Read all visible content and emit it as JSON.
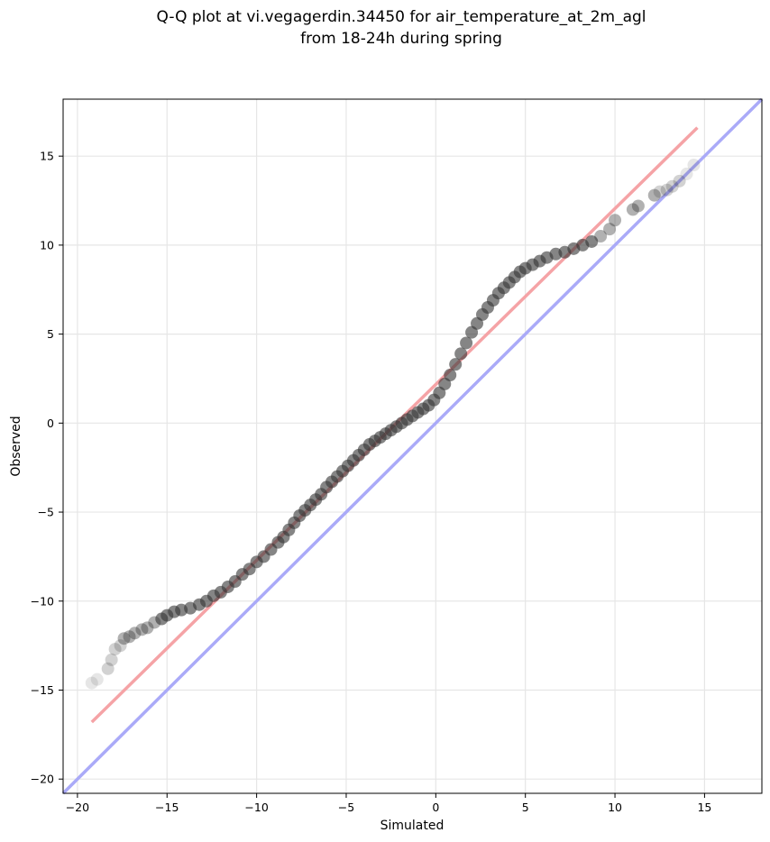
{
  "chart_data": {
    "type": "scatter",
    "title_lines": [
      "Q-Q plot at vi.vegagerdin.34450 for air_temperature_at_2m_agl",
      "from 18-24h during spring"
    ],
    "xlabel": "Simulated",
    "ylabel": "Observed",
    "xlim": [
      -20.8,
      18.2
    ],
    "ylim": [
      -20.8,
      18.2
    ],
    "xticks": [
      -20,
      -15,
      -10,
      -5,
      0,
      5,
      10,
      15
    ],
    "yticks": [
      -20,
      -15,
      -10,
      -5,
      0,
      5,
      10,
      15
    ],
    "xtick_labels": [
      "−20",
      "−15",
      "−10",
      "−5",
      "0",
      "5",
      "10",
      "15"
    ],
    "ytick_labels": [
      "−20",
      "−15",
      "−10",
      "−5",
      "0",
      "5",
      "10",
      "15"
    ],
    "grid": true,
    "colors": {
      "points": "#333333",
      "identity_line": "#aaaaf8",
      "fit_line": "#f5a3a6",
      "grid": "#e6e6e6"
    },
    "identity_line": {
      "x": [
        -20.8,
        18.2
      ],
      "y": [
        -20.8,
        18.2
      ]
    },
    "fit_line": {
      "x": [
        -19.2,
        14.6
      ],
      "y": [
        -16.8,
        16.6
      ]
    },
    "quantile_points": {
      "x": [
        -19.2,
        -18.9,
        -18.3,
        -18.1,
        -17.9,
        -17.6,
        -17.4,
        -17.1,
        -16.8,
        -16.4,
        -16.1,
        -15.7,
        -15.3,
        -15.0,
        -14.6,
        -14.2,
        -13.7,
        -13.2,
        -12.8,
        -12.4,
        -12.0,
        -11.6,
        -11.2,
        -10.8,
        -10.4,
        -10.0,
        -9.6,
        -9.2,
        -8.8,
        -8.5,
        -8.2,
        -7.9,
        -7.6,
        -7.3,
        -7.0,
        -6.7,
        -6.4,
        -6.1,
        -5.8,
        -5.5,
        -5.2,
        -4.9,
        -4.6,
        -4.3,
        -4.0,
        -3.7,
        -3.4,
        -3.1,
        -2.8,
        -2.5,
        -2.2,
        -1.9,
        -1.6,
        -1.3,
        -1.0,
        -0.7,
        -0.4,
        -0.1,
        0.2,
        0.5,
        0.8,
        1.1,
        1.4,
        1.7,
        2.0,
        2.3,
        2.6,
        2.9,
        3.2,
        3.5,
        3.8,
        4.1,
        4.4,
        4.7,
        5.0,
        5.4,
        5.8,
        6.2,
        6.7,
        7.2,
        7.7,
        8.2,
        8.7,
        9.2,
        9.7,
        10.0,
        11.0,
        11.3,
        12.2,
        12.5,
        12.9,
        13.2,
        13.6,
        14.0,
        14.4
      ],
      "y": [
        -14.6,
        -14.4,
        -13.8,
        -13.3,
        -12.7,
        -12.5,
        -12.1,
        -12.0,
        -11.8,
        -11.6,
        -11.5,
        -11.2,
        -11.0,
        -10.8,
        -10.6,
        -10.5,
        -10.4,
        -10.2,
        -10.0,
        -9.7,
        -9.5,
        -9.2,
        -8.9,
        -8.5,
        -8.2,
        -7.8,
        -7.5,
        -7.1,
        -6.7,
        -6.4,
        -6.0,
        -5.6,
        -5.2,
        -4.9,
        -4.6,
        -4.3,
        -4.0,
        -3.6,
        -3.3,
        -3.0,
        -2.7,
        -2.4,
        -2.1,
        -1.8,
        -1.5,
        -1.2,
        -1.0,
        -0.8,
        -0.6,
        -0.4,
        -0.2,
        0.0,
        0.2,
        0.4,
        0.6,
        0.8,
        1.0,
        1.3,
        1.7,
        2.2,
        2.7,
        3.3,
        3.9,
        4.5,
        5.1,
        5.6,
        6.1,
        6.5,
        6.9,
        7.3,
        7.6,
        7.9,
        8.2,
        8.5,
        8.7,
        8.9,
        9.1,
        9.3,
        9.5,
        9.6,
        9.8,
        10.0,
        10.2,
        10.5,
        10.9,
        11.4,
        12.0,
        12.2,
        12.8,
        13.0,
        13.1,
        13.3,
        13.6,
        14.0,
        14.5
      ]
    }
  }
}
